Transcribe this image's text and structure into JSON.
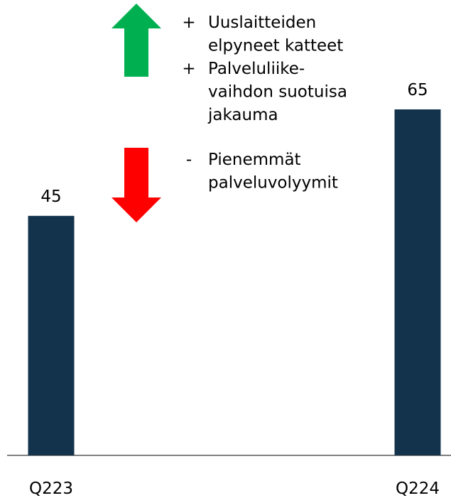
{
  "chart_data": {
    "type": "bar",
    "categories": [
      "Q223",
      "Q224"
    ],
    "values": [
      45,
      65
    ],
    "color": "#13334c",
    "annotations": [
      {
        "sign": "+",
        "lines": [
          "Uuslaitteiden",
          "elpyneet katteet"
        ]
      },
      {
        "sign": "+",
        "lines": [
          "Palveluliike-",
          "vaihdon suotuisa",
          "jakauma"
        ]
      },
      {
        "sign": "-",
        "lines": [
          "Pienemmät",
          "palveluvolyymit"
        ]
      }
    ]
  }
}
